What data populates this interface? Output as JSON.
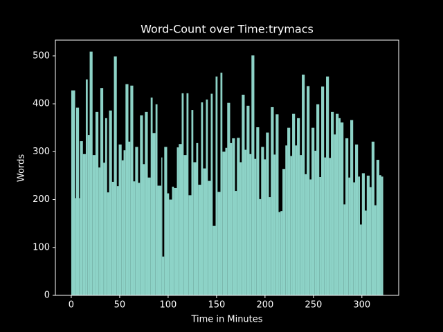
{
  "chart_data": {
    "type": "bar",
    "title": "Word-Count over Time:trymacs",
    "x_label": "Time in Minutes",
    "y_label": "Words",
    "x": [
      0,
      4,
      5,
      8,
      9,
      12,
      15,
      17,
      19,
      22,
      25,
      28,
      30,
      33,
      35,
      37,
      39,
      42,
      44,
      47,
      49,
      52,
      54,
      56,
      59,
      61,
      64,
      66,
      69,
      71,
      74,
      76,
      79,
      82,
      84,
      87,
      89,
      93,
      94,
      96,
      99,
      101,
      104,
      106,
      109,
      111,
      114,
      116,
      119,
      121,
      124,
      126,
      129,
      131,
      134,
      136,
      139,
      141,
      144,
      146,
      149,
      151,
      154,
      156,
      159,
      161,
      164,
      166,
      169,
      171,
      174,
      176,
      179,
      181,
      184,
      186,
      189,
      191,
      194,
      196,
      199,
      201,
      204,
      206,
      209,
      211,
      214,
      216,
      218,
      221,
      223,
      226,
      228,
      231,
      233,
      236,
      238,
      241,
      243,
      246,
      248,
      251,
      253,
      256,
      258,
      261,
      263,
      266,
      268,
      271,
      273,
      276,
      278,
      281,
      283,
      286,
      288,
      291,
      293,
      296,
      298,
      300,
      303,
      305,
      308,
      310,
      313,
      315,
      318,
      320
    ],
    "values": [
      428,
      203,
      392,
      203,
      322,
      295,
      451,
      335,
      509,
      293,
      383,
      267,
      433,
      277,
      370,
      215,
      386,
      237,
      499,
      228,
      315,
      282,
      303,
      441,
      321,
      438,
      238,
      310,
      235,
      376,
      274,
      383,
      246,
      413,
      339,
      399,
      229,
      288,
      81,
      310,
      213,
      200,
      227,
      224,
      309,
      316,
      422,
      293,
      422,
      209,
      387,
      278,
      318,
      231,
      403,
      265,
      409,
      239,
      421,
      145,
      457,
      216,
      465,
      300,
      308,
      402,
      318,
      328,
      218,
      329,
      278,
      419,
      304,
      396,
      295,
      501,
      285,
      351,
      201,
      310,
      284,
      340,
      205,
      393,
      294,
      378,
      174,
      176,
      264,
      313,
      350,
      291,
      379,
      313,
      370,
      293,
      461,
      253,
      437,
      242,
      350,
      302,
      399,
      247,
      436,
      288,
      457,
      287,
      383,
      336,
      379,
      370,
      361,
      190,
      328,
      246,
      366,
      236,
      315,
      248,
      148,
      255,
      177,
      250,
      226,
      321,
      188,
      283,
      251,
      248
    ],
    "color": "#8dd3c7",
    "xlim": [
      -16.4,
      338
    ],
    "ylim": [
      0,
      533
    ],
    "xticks": [
      0,
      50,
      100,
      150,
      200,
      250,
      300
    ],
    "yticks": [
      0,
      100,
      200,
      300,
      400,
      500
    ]
  }
}
